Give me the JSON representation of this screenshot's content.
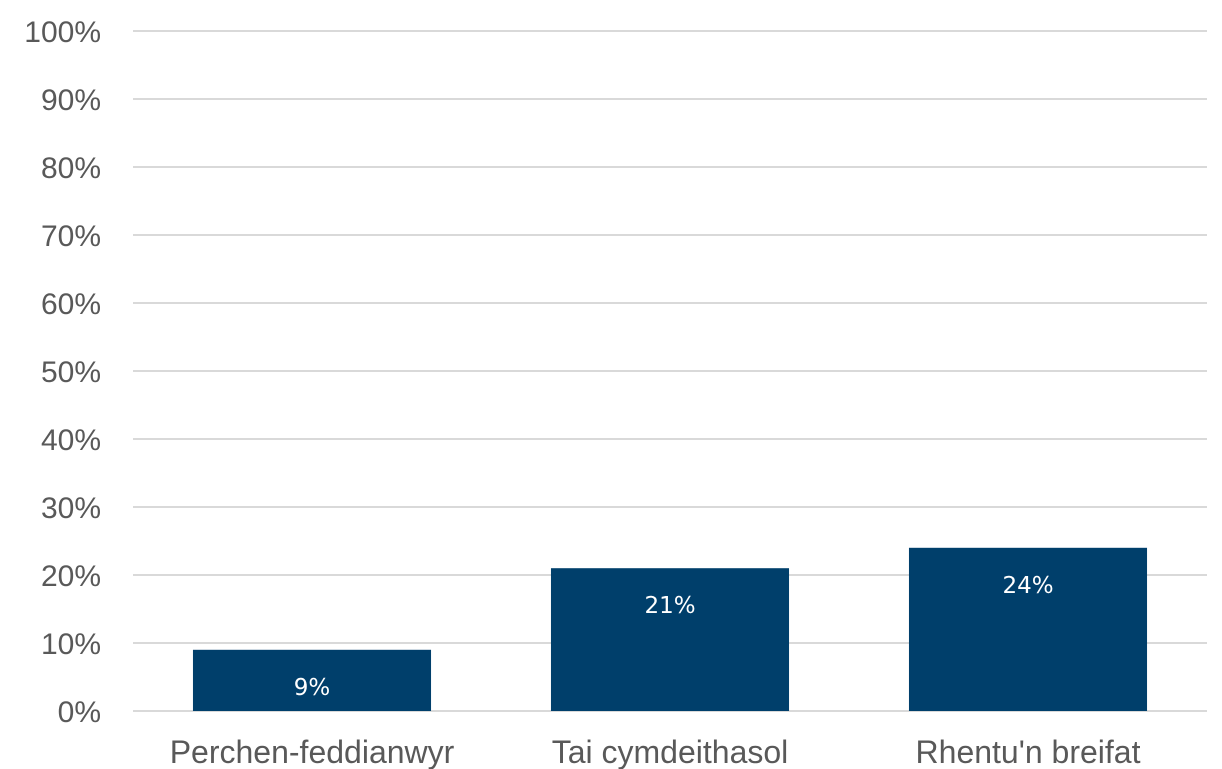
{
  "chart_data": {
    "type": "bar",
    "categories": [
      "Perchen-feddianwyr",
      "Tai cymdeithasol",
      "Rhentu'n breifat"
    ],
    "values": [
      9,
      21,
      24
    ],
    "data_labels": [
      "9%",
      "21%",
      "24%"
    ],
    "ylim": [
      0,
      100
    ],
    "yticks": [
      0,
      10,
      20,
      30,
      40,
      50,
      60,
      70,
      80,
      90,
      100
    ],
    "ytick_labels": [
      "0%",
      "10%",
      "20%",
      "30%",
      "40%",
      "50%",
      "60%",
      "70%",
      "80%",
      "90%",
      "100%"
    ],
    "bar_color": "#003f6b",
    "gridline_color": "#d9d9d9",
    "label_color": "#595959",
    "grid": true
  }
}
